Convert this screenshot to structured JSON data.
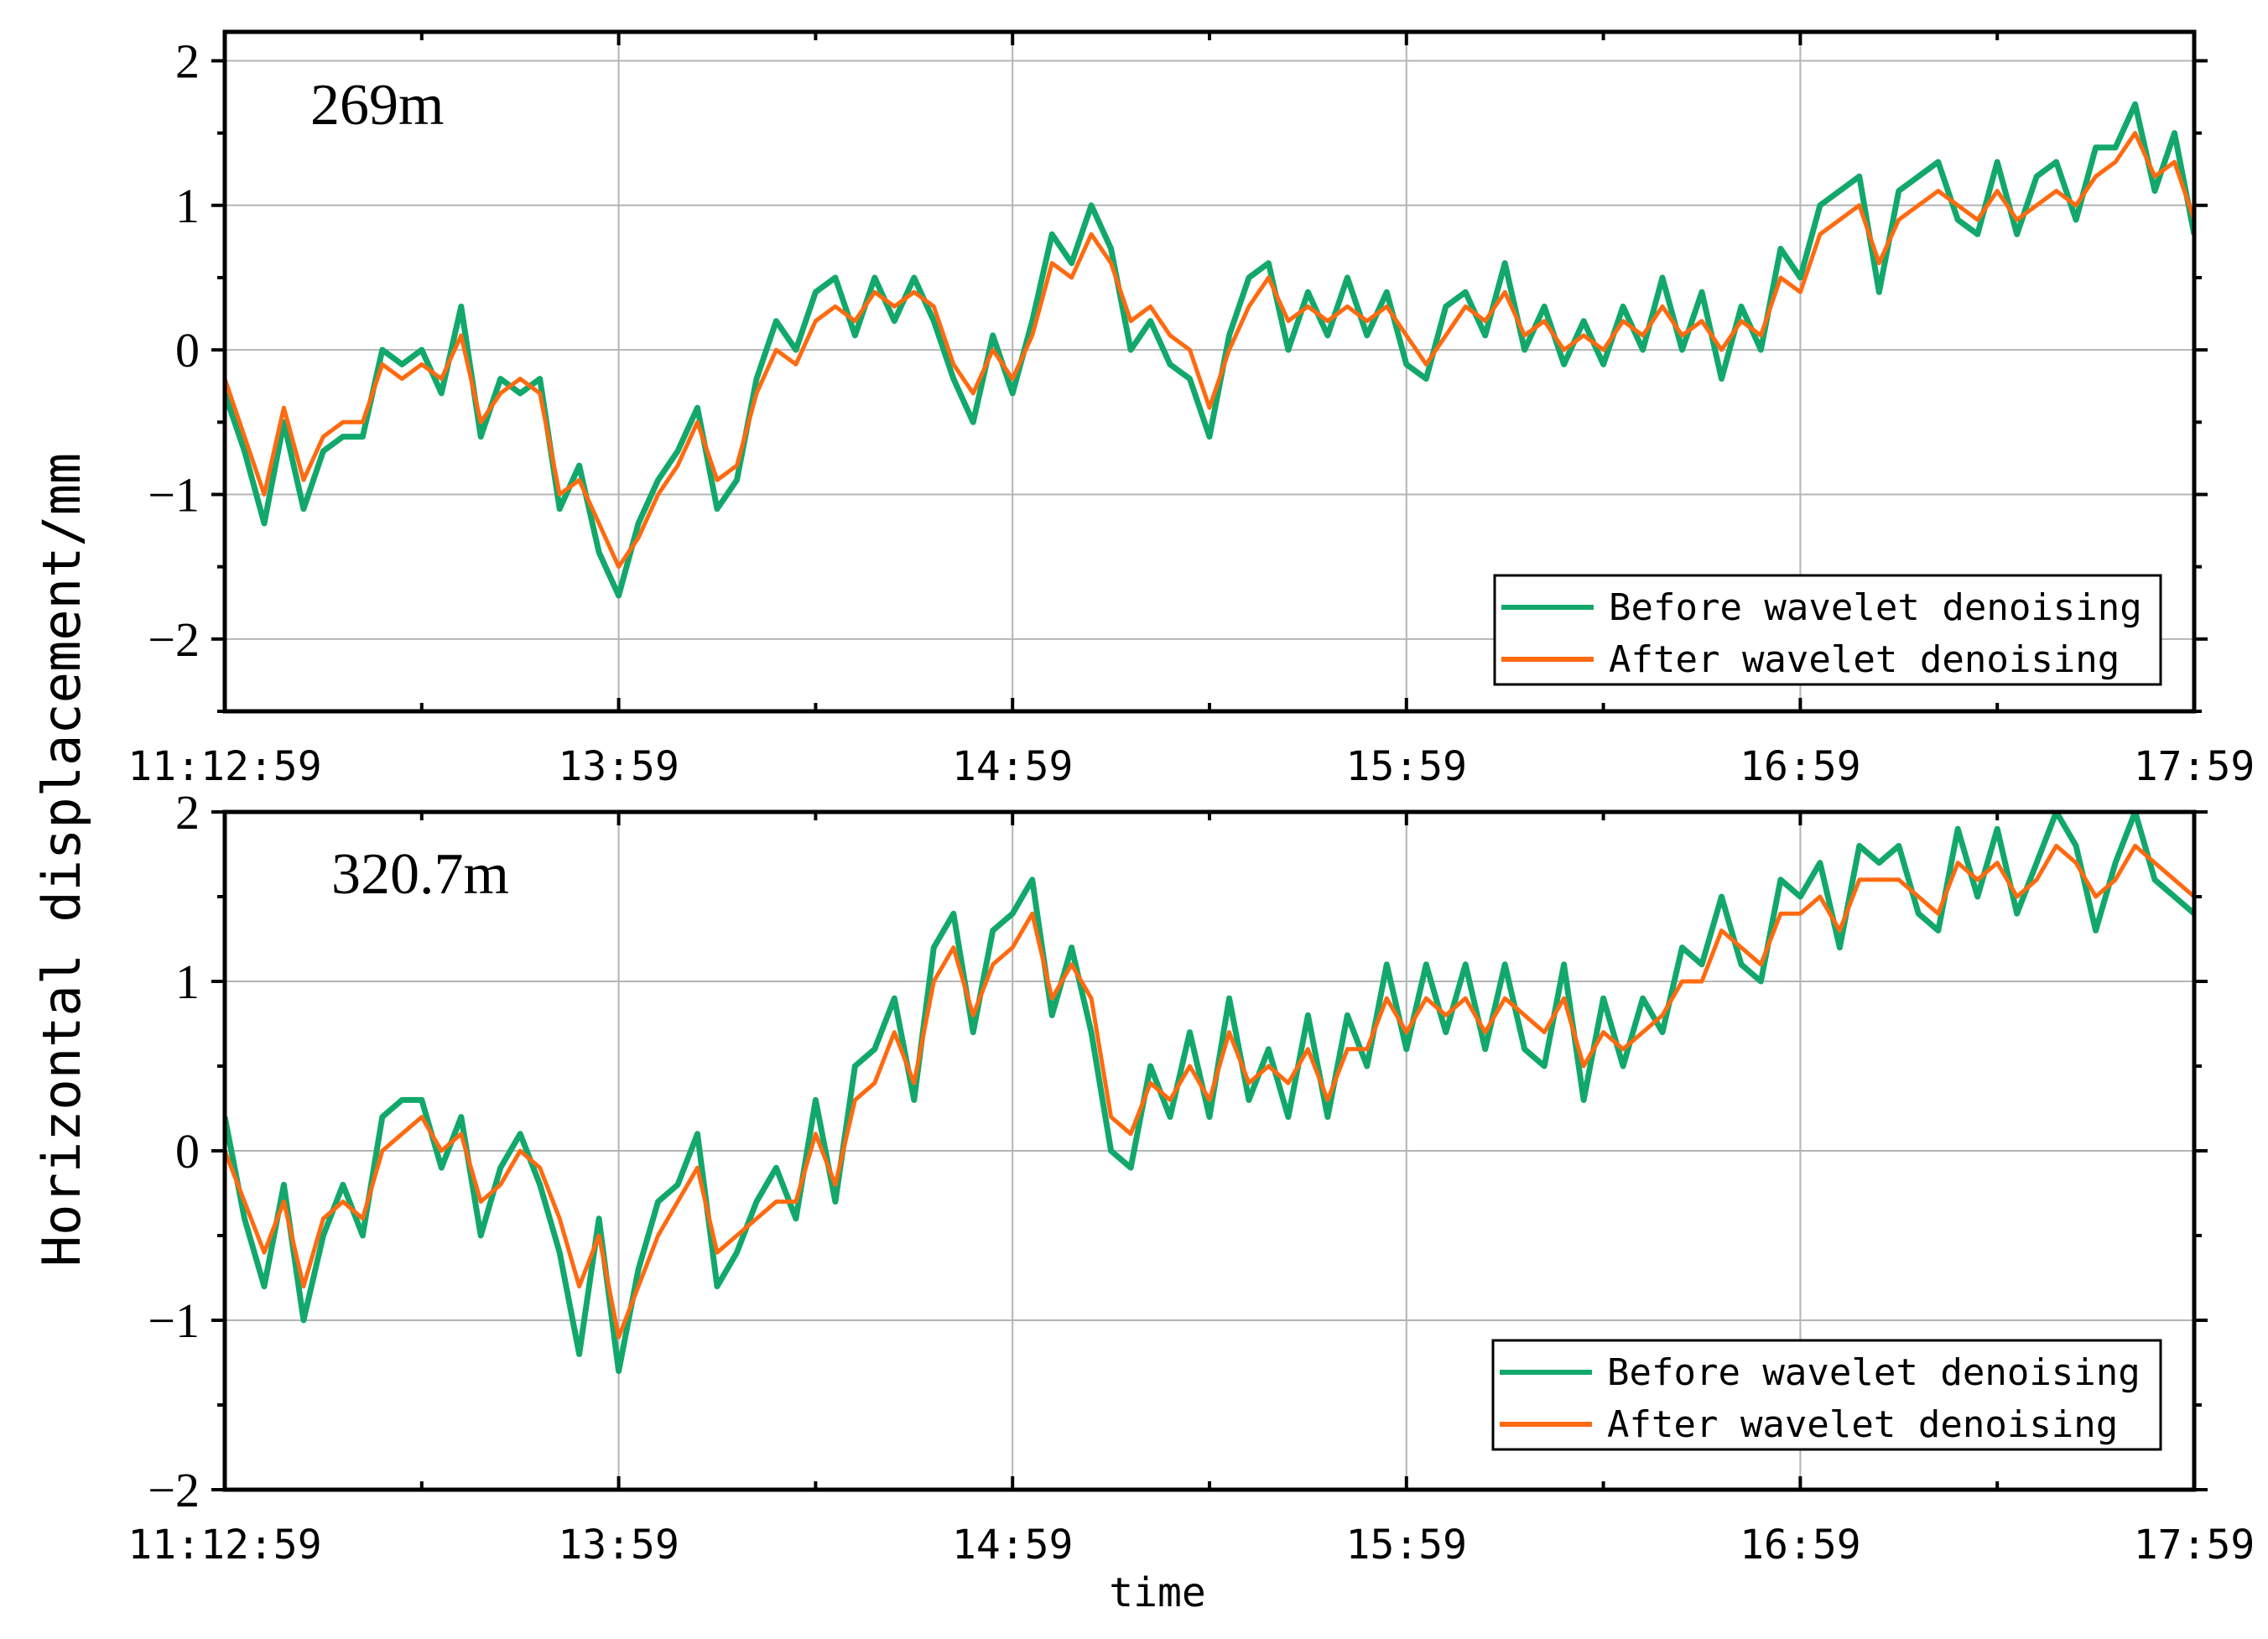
{
  "chart_data": {
    "type": "line",
    "shared": {
      "ylabel": "Horizontal displacement/mm",
      "xlabel": "time",
      "x_ticks": [
        "11:12:59",
        "13:59",
        "14:59",
        "15:59",
        "16:59",
        "17:59"
      ],
      "series_names": [
        "Before wavelet denoising",
        "After wavelet denoising"
      ],
      "colors": {
        "before": "#12a86b",
        "after": "#ff6a10"
      },
      "grid": true,
      "legend": "bottom-right"
    },
    "panels": [
      {
        "label": "269m",
        "ylim": [
          -2.5,
          2.2
        ],
        "yticks": [
          -2,
          -1,
          0,
          1,
          2
        ],
        "ytick_labels": [
          "−2",
          "−1",
          "0",
          "1",
          "2"
        ],
        "x": [
          0,
          1,
          2,
          3,
          4,
          5,
          6,
          7,
          8,
          9,
          10,
          11,
          12,
          13,
          14,
          15,
          16,
          17,
          18,
          19,
          20,
          21,
          22,
          23,
          24,
          25,
          26,
          27,
          28,
          29,
          30,
          31,
          32,
          33,
          34,
          35,
          36,
          37,
          38,
          39,
          40,
          41,
          42,
          43,
          44,
          45,
          46,
          47,
          48,
          49,
          50,
          51,
          52,
          53,
          54,
          55,
          56,
          57,
          58,
          59,
          60,
          61,
          62,
          63,
          64,
          65,
          66,
          67,
          68,
          69,
          70,
          71,
          72,
          73,
          74,
          75,
          76,
          77,
          78,
          79,
          80,
          81,
          82,
          83,
          84,
          85,
          86,
          87,
          88,
          89,
          90,
          91,
          92,
          93,
          94,
          95,
          96,
          97,
          98,
          99,
          100
        ],
        "series": [
          {
            "name": "After wavelet denoising",
            "values": [
              -0.2,
              -0.6,
              -1.0,
              -0.4,
              -0.9,
              -0.6,
              -0.5,
              -0.5,
              -0.1,
              -0.2,
              -0.1,
              -0.2,
              0.1,
              -0.5,
              -0.3,
              -0.2,
              -0.3,
              -1.0,
              -0.9,
              -1.2,
              -1.5,
              -1.3,
              -1.0,
              -0.8,
              -0.5,
              -0.9,
              -0.8,
              -0.3,
              0.0,
              -0.1,
              0.2,
              0.3,
              0.2,
              0.4,
              0.3,
              0.4,
              0.3,
              -0.1,
              -0.3,
              0.0,
              -0.2,
              0.1,
              0.6,
              0.5,
              0.8,
              0.6,
              0.2,
              0.3,
              0.1,
              0.0,
              -0.4,
              0.0,
              0.3,
              0.5,
              0.2,
              0.3,
              0.2,
              0.3,
              0.2,
              0.3,
              0.1,
              -0.1,
              0.1,
              0.3,
              0.2,
              0.4,
              0.1,
              0.2,
              0.0,
              0.1,
              0.0,
              0.2,
              0.1,
              0.3,
              0.1,
              0.2,
              0.0,
              0.2,
              0.1,
              0.5,
              0.4,
              0.8,
              0.9,
              1.0,
              0.6,
              0.9,
              1.0,
              1.1,
              1.0,
              0.9,
              1.1,
              0.9,
              1.0,
              1.1,
              1.0,
              1.2,
              1.3,
              1.5,
              1.2,
              1.3,
              0.9
            ]
          },
          {
            "name": "Before wavelet denoising",
            "values": [
              -0.3,
              -0.7,
              -1.2,
              -0.5,
              -1.1,
              -0.7,
              -0.6,
              -0.6,
              0.0,
              -0.1,
              0.0,
              -0.3,
              0.3,
              -0.6,
              -0.2,
              -0.3,
              -0.2,
              -1.1,
              -0.8,
              -1.4,
              -1.7,
              -1.2,
              -0.9,
              -0.7,
              -0.4,
              -1.1,
              -0.9,
              -0.2,
              0.2,
              0.0,
              0.4,
              0.5,
              0.1,
              0.5,
              0.2,
              0.5,
              0.2,
              -0.2,
              -0.5,
              0.1,
              -0.3,
              0.2,
              0.8,
              0.6,
              1.0,
              0.7,
              0.0,
              0.2,
              -0.1,
              -0.2,
              -0.6,
              0.1,
              0.5,
              0.6,
              0.0,
              0.4,
              0.1,
              0.5,
              0.1,
              0.4,
              -0.1,
              -0.2,
              0.3,
              0.4,
              0.1,
              0.6,
              0.0,
              0.3,
              -0.1,
              0.2,
              -0.1,
              0.3,
              0.0,
              0.5,
              0.0,
              0.4,
              -0.2,
              0.3,
              0.0,
              0.7,
              0.5,
              1.0,
              1.1,
              1.2,
              0.4,
              1.1,
              1.2,
              1.3,
              0.9,
              0.8,
              1.3,
              0.8,
              1.2,
              1.3,
              0.9,
              1.4,
              1.4,
              1.7,
              1.1,
              1.5,
              0.8
            ]
          }
        ]
      },
      {
        "label": "320.7m",
        "ylim": [
          -2,
          2
        ],
        "yticks": [
          -2,
          -1,
          0,
          1,
          2
        ],
        "ytick_labels": [
          "−2",
          "−1",
          "0",
          "1",
          "2"
        ],
        "x": [
          0,
          1,
          2,
          3,
          4,
          5,
          6,
          7,
          8,
          9,
          10,
          11,
          12,
          13,
          14,
          15,
          16,
          17,
          18,
          19,
          20,
          21,
          22,
          23,
          24,
          25,
          26,
          27,
          28,
          29,
          30,
          31,
          32,
          33,
          34,
          35,
          36,
          37,
          38,
          39,
          40,
          41,
          42,
          43,
          44,
          45,
          46,
          47,
          48,
          49,
          50,
          51,
          52,
          53,
          54,
          55,
          56,
          57,
          58,
          59,
          60,
          61,
          62,
          63,
          64,
          65,
          66,
          67,
          68,
          69,
          70,
          71,
          72,
          73,
          74,
          75,
          76,
          77,
          78,
          79,
          80,
          81,
          82,
          83,
          84,
          85,
          86,
          87,
          88,
          89,
          90,
          91,
          92,
          93,
          94,
          95,
          96,
          97,
          98,
          99,
          100
        ],
        "series": [
          {
            "name": "After wavelet denoising",
            "values": [
              0.0,
              -0.3,
              -0.6,
              -0.3,
              -0.8,
              -0.4,
              -0.3,
              -0.4,
              0.0,
              0.1,
              0.2,
              0.0,
              0.1,
              -0.3,
              -0.2,
              0.0,
              -0.1,
              -0.4,
              -0.8,
              -0.5,
              -1.1,
              -0.8,
              -0.5,
              -0.3,
              -0.1,
              -0.6,
              -0.5,
              -0.4,
              -0.3,
              -0.3,
              0.1,
              -0.2,
              0.3,
              0.4,
              0.7,
              0.4,
              1.0,
              1.2,
              0.8,
              1.1,
              1.2,
              1.4,
              0.9,
              1.1,
              0.9,
              0.2,
              0.1,
              0.4,
              0.3,
              0.5,
              0.3,
              0.7,
              0.4,
              0.5,
              0.4,
              0.6,
              0.3,
              0.6,
              0.6,
              0.9,
              0.7,
              0.9,
              0.8,
              0.9,
              0.7,
              0.9,
              0.8,
              0.7,
              0.9,
              0.5,
              0.7,
              0.6,
              0.7,
              0.8,
              1.0,
              1.0,
              1.3,
              1.2,
              1.1,
              1.4,
              1.4,
              1.5,
              1.3,
              1.6,
              1.6,
              1.6,
              1.5,
              1.4,
              1.7,
              1.6,
              1.7,
              1.5,
              1.6,
              1.8,
              1.7,
              1.5,
              1.6,
              1.8,
              1.7,
              1.6,
              1.5
            ]
          },
          {
            "name": "Before wavelet denoising",
            "values": [
              0.2,
              -0.4,
              -0.8,
              -0.2,
              -1.0,
              -0.5,
              -0.2,
              -0.5,
              0.2,
              0.3,
              0.3,
              -0.1,
              0.2,
              -0.5,
              -0.1,
              0.1,
              -0.2,
              -0.6,
              -1.2,
              -0.4,
              -1.3,
              -0.7,
              -0.3,
              -0.2,
              0.1,
              -0.8,
              -0.6,
              -0.3,
              -0.1,
              -0.4,
              0.3,
              -0.3,
              0.5,
              0.6,
              0.9,
              0.3,
              1.2,
              1.4,
              0.7,
              1.3,
              1.4,
              1.6,
              0.8,
              1.2,
              0.7,
              0.0,
              -0.1,
              0.5,
              0.2,
              0.7,
              0.2,
              0.9,
              0.3,
              0.6,
              0.2,
              0.8,
              0.2,
              0.8,
              0.5,
              1.1,
              0.6,
              1.1,
              0.7,
              1.1,
              0.6,
              1.1,
              0.6,
              0.5,
              1.1,
              0.3,
              0.9,
              0.5,
              0.9,
              0.7,
              1.2,
              1.1,
              1.5,
              1.1,
              1.0,
              1.6,
              1.5,
              1.7,
              1.2,
              1.8,
              1.7,
              1.8,
              1.4,
              1.3,
              1.9,
              1.5,
              1.9,
              1.4,
              1.7,
              2.0,
              1.8,
              1.3,
              1.7,
              2.0,
              1.6,
              1.5,
              1.4
            ]
          }
        ]
      }
    ]
  }
}
